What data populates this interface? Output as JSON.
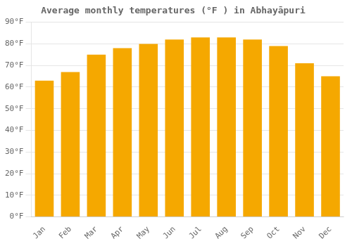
{
  "chart_data": {
    "type": "bar",
    "title": "Average monthly temperatures (°F ) in Abhayāpuri",
    "categories": [
      "Jan",
      "Feb",
      "Mar",
      "Apr",
      "May",
      "Jun",
      "Jul",
      "Aug",
      "Sep",
      "Oct",
      "Nov",
      "Dec"
    ],
    "values": [
      63,
      67,
      75,
      78,
      80,
      82,
      83,
      83,
      82,
      79,
      71,
      65
    ],
    "color": "#F5A800",
    "ylim": [
      0,
      90
    ],
    "yticks": [
      {
        "value": 0,
        "label": "0°F"
      },
      {
        "value": 10,
        "label": "10°F"
      },
      {
        "value": 20,
        "label": "20°F"
      },
      {
        "value": 30,
        "label": "30°F"
      },
      {
        "value": 40,
        "label": "40°F"
      },
      {
        "value": 50,
        "label": "50°F"
      },
      {
        "value": 60,
        "label": "60°F"
      },
      {
        "value": 70,
        "label": "70°F"
      },
      {
        "value": 80,
        "label": "80°F"
      },
      {
        "value": 90,
        "label": "90°F"
      }
    ],
    "grid": true
  }
}
